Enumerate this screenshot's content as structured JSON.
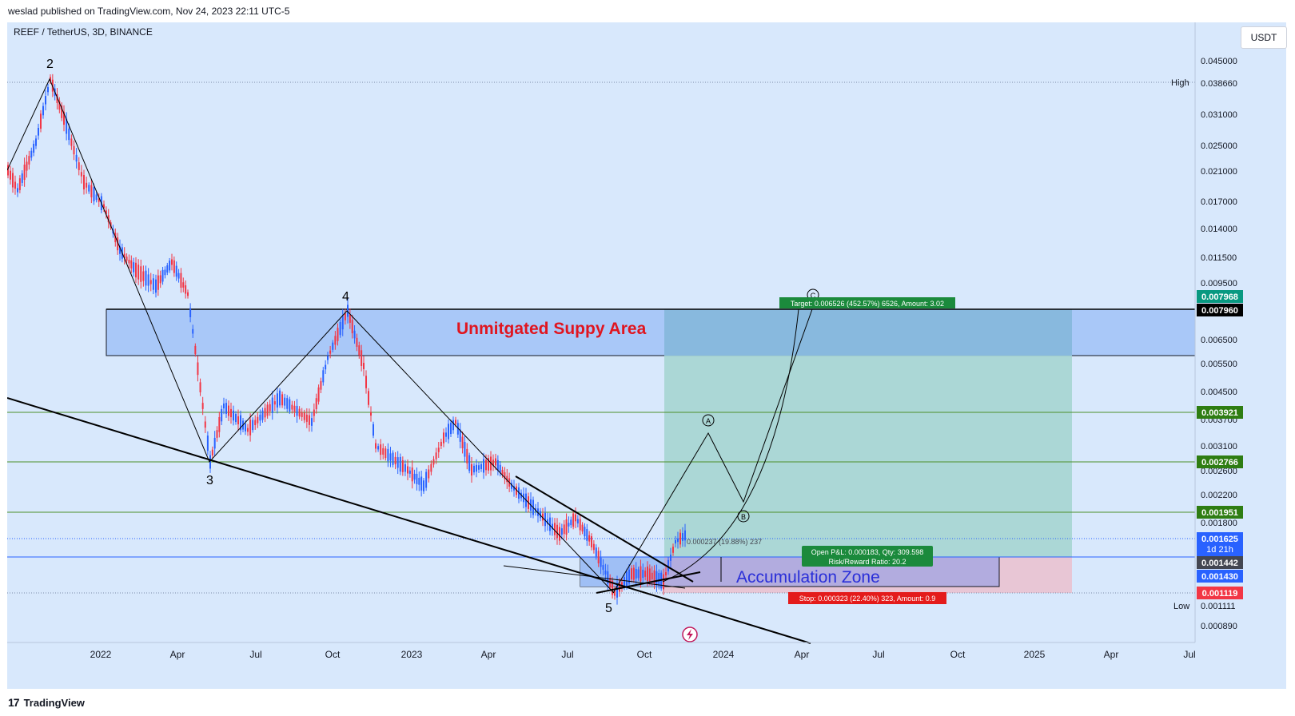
{
  "header": {
    "published_text": "weslad published on TradingView.com, Nov 24, 2023 22:11 UTC-5"
  },
  "footer": {
    "logo_text": "TradingView"
  },
  "toolbar": {
    "currency": "USDT"
  },
  "chart_data": {
    "type": "candlestick",
    "symbol_label": "REEF / TetherUS, 3D, BINANCE",
    "scale": "log",
    "y_ticks": [
      "0.045000",
      "0.031000",
      "0.025000",
      "0.021000",
      "0.017000",
      "0.014000",
      "0.011500",
      "0.009500",
      "0.006500",
      "0.005500",
      "0.004500",
      "0.003700",
      "0.003100",
      "0.002600",
      "0.002200",
      "0.001800",
      "0.000890"
    ],
    "x_ticks": [
      "2022",
      "Apr",
      "Jul",
      "Oct",
      "2023",
      "Apr",
      "Jul",
      "Oct",
      "2024",
      "Apr",
      "Jul",
      "Oct",
      "2025",
      "Apr",
      "Jul"
    ],
    "price_labels": [
      {
        "value": "0.007968",
        "color": "#089981"
      },
      {
        "value": "0.007960",
        "color": "#000000"
      },
      {
        "value": "0.003921",
        "color": "#2e7d12"
      },
      {
        "value": "0.002766",
        "color": "#2e7d12"
      },
      {
        "value": "0.001951",
        "color": "#2e7d12"
      },
      {
        "value": "0.001625",
        "sub": "1d 21h",
        "color": "#2962ff"
      },
      {
        "value": "0.001442",
        "color": "#434651"
      },
      {
        "value": "0.001430",
        "color": "#2962ff"
      },
      {
        "value": "0.001119",
        "color": "#f23645"
      }
    ],
    "high_label": {
      "name": "High",
      "value": "0.038660"
    },
    "low_label": {
      "name": "Low",
      "value": "0.001111"
    },
    "wave_labels": [
      "2",
      "3",
      "4",
      "5"
    ],
    "projection_labels": [
      "A",
      "B",
      "C"
    ],
    "zones": {
      "supply": "Unmitgated Suppy Area",
      "accumulation": "Accumulation Zone"
    },
    "position": {
      "target": "Target: 0.006526 (452.57%) 6526, Amount: 3.02",
      "open_pnl": "Open P&L: 0.000183, Qty: 309.598",
      "rr": "Risk/Reward Ratio: 20.2",
      "stop": "Stop: 0.000323 (22.40%) 323, Amount: 0.9",
      "measure": "0.000237 (19.88%) 237"
    },
    "colors": {
      "background": "#d8e8fc",
      "up_candle": "#2962ff",
      "down_candle": "#f23645",
      "supply_zone": "#a9c8f8",
      "target_zone": "#a6d5d1",
      "stop_zone": "#e8c6d5",
      "accum_zone": "#b2acdf",
      "green_line": "#4c8f2a"
    }
  }
}
